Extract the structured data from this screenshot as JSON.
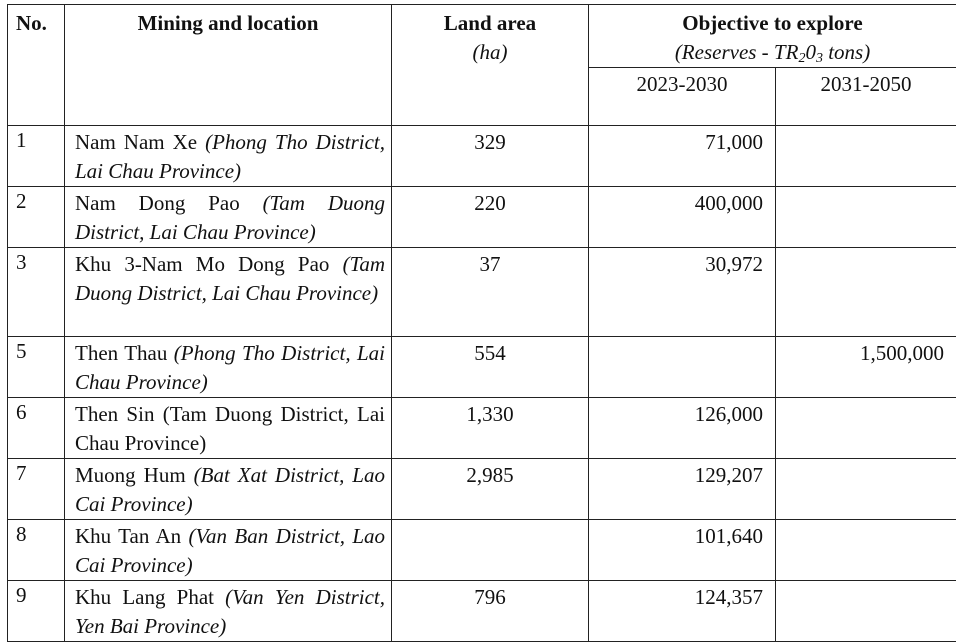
{
  "headers": {
    "no": "No.",
    "mining": "Mining and location",
    "land_area": "Land area",
    "land_unit": "(ha)",
    "objective": "Objective to explore",
    "objective_sub_pre": "(Reserves - TR",
    "objective_sub_2": "2",
    "objective_sub_0": "0",
    "objective_sub_3": "3",
    "objective_sub_post": " tons)",
    "period1": "2023-2030",
    "period2": "2031-2050"
  },
  "rows": [
    {
      "no": "1",
      "name": "Nam Nam Xe",
      "location": "(Phong Tho District, Lai Chau Province)",
      "area": "329",
      "p1": "71,000",
      "p2": ""
    },
    {
      "no": "2",
      "name": "Nam Dong Pao",
      "location": "(Tam Duong District, Lai Chau Province)",
      "area": "220",
      "p1": "400,000",
      "p2": ""
    },
    {
      "no": "3",
      "name": "Khu 3-Nam Mo Dong Pao",
      "location": "(Tam Duong District, Lai Chau Province)",
      "area": "37",
      "p1": "30,972",
      "p2": ""
    },
    {
      "no": "5",
      "name": "Then Thau",
      "location": "(Phong Tho District, Lai Chau Province)",
      "area": "554",
      "p1": "",
      "p2": "1,500,000"
    },
    {
      "no": "6",
      "name": "Then Sin",
      "location": "(Tam Duong District, Lai Chau Province)",
      "area": "1,330",
      "p1": "126,000",
      "p2": ""
    },
    {
      "no": "7",
      "name": "Muong Hum",
      "location": "(Bat Xat District, Lao Cai Province)",
      "area": "2,985",
      "p1": "129,207",
      "p2": ""
    },
    {
      "no": "8",
      "name": "Khu Tan An",
      "location": "(Van Ban District, Lao Cai Province)",
      "area": "",
      "p1": "101,640",
      "p2": ""
    },
    {
      "no": "9",
      "name": "Khu Lang Phat",
      "location": "(Van Yen District, Yen Bai Province)",
      "area": "796",
      "p1": "124,357",
      "p2": ""
    }
  ]
}
